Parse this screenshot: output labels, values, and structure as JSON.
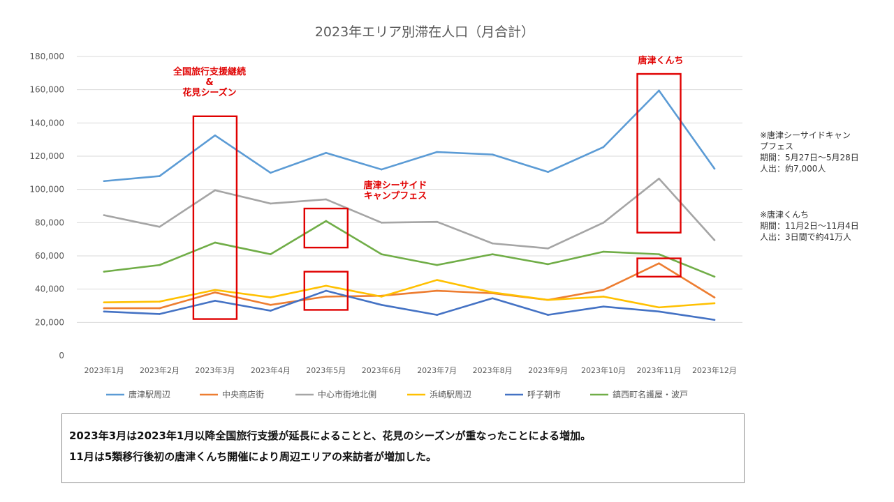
{
  "chart_data": {
    "type": "line",
    "title": "2023年エリア別滞在人口（月合計）",
    "xlabel": "",
    "ylabel": "",
    "ylim": [
      0,
      180000
    ],
    "yticks": [
      0,
      20000,
      40000,
      60000,
      80000,
      100000,
      120000,
      140000,
      160000,
      180000
    ],
    "ytick_labels": [
      "0",
      "20,000",
      "40,000",
      "60,000",
      "80,000",
      "100,000",
      "120,000",
      "140,000",
      "160,000",
      "180,000"
    ],
    "grid": true,
    "legend_position": "bottom",
    "categories": [
      "2023年1月",
      "2023年2月",
      "2023年3月",
      "2023年4月",
      "2023年5月",
      "2023年6月",
      "2023年7月",
      "2023年8月",
      "2023年9月",
      "2023年10月",
      "2023年11月",
      "2023年12月"
    ],
    "series": [
      {
        "name": "唐津駅周辺",
        "color": "#5b9bd5",
        "values": [
          105000,
          108000,
          132500,
          110000,
          122000,
          112000,
          122500,
          121000,
          110500,
          125500,
          159500,
          112500
        ]
      },
      {
        "name": "中央商店街",
        "color": "#ed7d31",
        "values": [
          28500,
          28500,
          38000,
          30500,
          35500,
          36000,
          39000,
          37500,
          33500,
          39500,
          55500,
          35000
        ]
      },
      {
        "name": "中心市街地北側",
        "color": "#a5a5a5",
        "values": [
          84500,
          77500,
          99500,
          91500,
          94000,
          80000,
          80500,
          67500,
          64500,
          80000,
          106500,
          69500
        ]
      },
      {
        "name": "浜崎駅周辺",
        "color": "#ffc000",
        "values": [
          32000,
          32500,
          39500,
          35000,
          42000,
          35500,
          45500,
          38000,
          33500,
          35500,
          29000,
          31500
        ]
      },
      {
        "name": "呼子朝市",
        "color": "#4472c4",
        "values": [
          26500,
          25000,
          33000,
          27000,
          39000,
          30500,
          24500,
          34500,
          24500,
          29500,
          26500,
          21500
        ]
      },
      {
        "name": "鎮西町名護屋・波戸",
        "color": "#70ad47",
        "values": [
          50500,
          54500,
          68000,
          61000,
          81000,
          61000,
          54500,
          61000,
          55000,
          62500,
          61000,
          47500
        ]
      }
    ],
    "annotations": [
      {
        "text": "全国旅行支援継続\n&\n花見シーズン",
        "color": "#e00000"
      },
      {
        "text": "唐津シーサイド\nキャンプフェス",
        "color": "#e00000"
      },
      {
        "text": "唐津くんち",
        "color": "#e00000"
      }
    ],
    "highlight_boxes": [
      {
        "category": "2023年3月",
        "y_range": [
          22000,
          144000
        ]
      },
      {
        "category": "2023年5月",
        "y_range": [
          65000,
          88500
        ]
      },
      {
        "category": "2023年5月",
        "y_range": [
          27500,
          50500
        ]
      },
      {
        "category": "2023年11月",
        "y_range": [
          74000,
          169500
        ]
      },
      {
        "category": "2023年11月",
        "y_range": [
          47500,
          58500
        ]
      }
    ]
  },
  "side_notes": [
    {
      "lines": [
        "※唐津シーサイドキャン",
        "プフェス",
        "期間：5月27日～5月28日",
        "人出：約7,000人"
      ]
    },
    {
      "lines": [
        "※唐津くんち",
        "期間：11月2日～11月4日",
        "人出：3日間で約41万人"
      ]
    }
  ],
  "summary": {
    "line1": "2023年3月は2023年1月以降全国旅行支援が延長によることと、花見のシーズンが重なったことによる増加。",
    "line2": "11月は5類移行後初の唐津くんち開催により周辺エリアの来訪者が増加した。"
  }
}
